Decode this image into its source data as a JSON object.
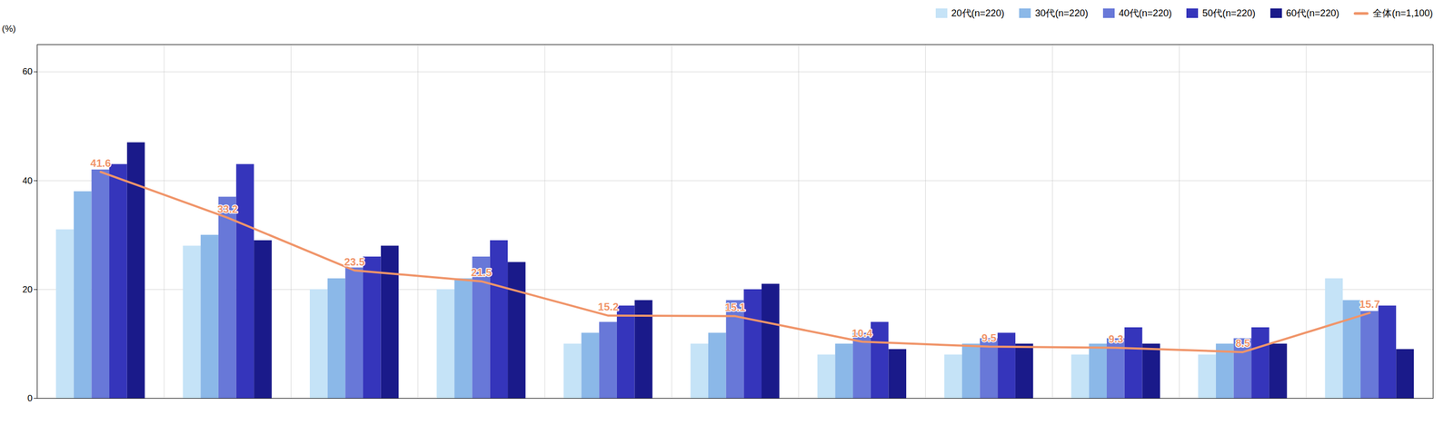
{
  "chart_data": {
    "type": "bar",
    "categories": [
      null,
      null,
      null,
      null,
      null,
      null,
      null,
      null,
      null,
      null,
      null
    ],
    "series": [
      {
        "name": "20代(n=220)",
        "color": "#C5E3F7",
        "values": [
          31,
          28,
          20,
          20,
          10,
          10,
          8,
          8,
          8,
          8,
          22
        ]
      },
      {
        "name": "30代(n=220)",
        "color": "#8BB8E8",
        "values": [
          38,
          30,
          22,
          22,
          12,
          12,
          10,
          10,
          10,
          10,
          18
        ]
      },
      {
        "name": "40代(n=220)",
        "color": "#6878D8",
        "values": [
          42,
          37,
          24,
          26,
          14,
          18,
          12,
          11,
          11,
          11,
          16
        ]
      },
      {
        "name": "50代(n=220)",
        "color": "#3535BB",
        "values": [
          43,
          43,
          26,
          29,
          17,
          20,
          14,
          12,
          13,
          13,
          17
        ]
      },
      {
        "name": "60代(n=220)",
        "color": "#1A1A8A",
        "values": [
          47,
          29,
          28,
          25,
          18,
          21,
          9,
          10,
          10,
          10,
          9
        ]
      },
      {
        "name": "全体(n=1,100)",
        "type": "line",
        "color": "#F0956A",
        "data_labels": true,
        "values": [
          41.6,
          33.2,
          23.5,
          21.5,
          15.2,
          15.1,
          10.4,
          9.5,
          9.3,
          8.5,
          15.7
        ]
      }
    ],
    "ylabel": "(%)",
    "ylim": [
      0,
      65
    ],
    "yticks": [
      0,
      20,
      40,
      60
    ],
    "grid": true,
    "legend": "upper right"
  }
}
